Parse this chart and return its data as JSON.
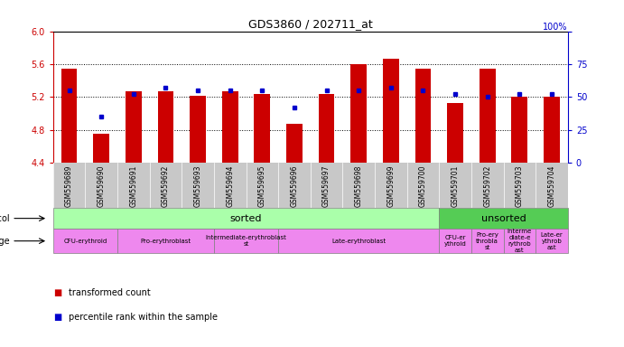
{
  "title": "GDS3860 / 202711_at",
  "samples": [
    "GSM559689",
    "GSM559690",
    "GSM559691",
    "GSM559692",
    "GSM559693",
    "GSM559694",
    "GSM559695",
    "GSM559696",
    "GSM559697",
    "GSM559698",
    "GSM559699",
    "GSM559700",
    "GSM559701",
    "GSM559702",
    "GSM559703",
    "GSM559704"
  ],
  "transformed_count": [
    5.54,
    4.75,
    5.27,
    5.27,
    5.22,
    5.27,
    5.24,
    4.87,
    5.24,
    5.6,
    5.67,
    5.54,
    5.13,
    5.54,
    5.2,
    5.2
  ],
  "percentile_rank": [
    55,
    35,
    52,
    57,
    55,
    55,
    55,
    42,
    55,
    55,
    57,
    55,
    52,
    50,
    52,
    52
  ],
  "ymin": 4.4,
  "ymax": 6.0,
  "yticks": [
    4.4,
    4.8,
    5.2,
    5.6,
    6.0
  ],
  "right_yticks": [
    0,
    25,
    50,
    75,
    100
  ],
  "bar_color": "#cc0000",
  "dot_color": "#0000cc",
  "protocol_sorted_color": "#aaffaa",
  "protocol_unsorted_color": "#55cc55",
  "stage_color": "#ee88ee",
  "dev_stages_sorted": [
    {
      "label": "CFU-erythroid",
      "start": 0,
      "end": 2
    },
    {
      "label": "Pro-erythroblast",
      "start": 2,
      "end": 5
    },
    {
      "label": "Intermediate-erythroblast\nst",
      "start": 5,
      "end": 7
    },
    {
      "label": "Late-erythroblast",
      "start": 7,
      "end": 12
    }
  ],
  "dev_stages_unsorted": [
    {
      "label": "CFU-er\nythroid",
      "start": 12,
      "end": 13
    },
    {
      "label": "Pro-ery\nthrobla\nst",
      "start": 13,
      "end": 14
    },
    {
      "label": "Interme\ndiate-e\nrythrob\nast",
      "start": 14,
      "end": 15
    },
    {
      "label": "Late-er\nythrob\nast",
      "start": 15,
      "end": 16
    }
  ],
  "legend_red": "transformed count",
  "legend_blue": "percentile rank within the sample",
  "axis_color": "#cc0000",
  "right_axis_color": "#0000cc",
  "bg_color": "#ffffff",
  "bar_width": 0.5,
  "xtick_bg": "#c8c8c8"
}
